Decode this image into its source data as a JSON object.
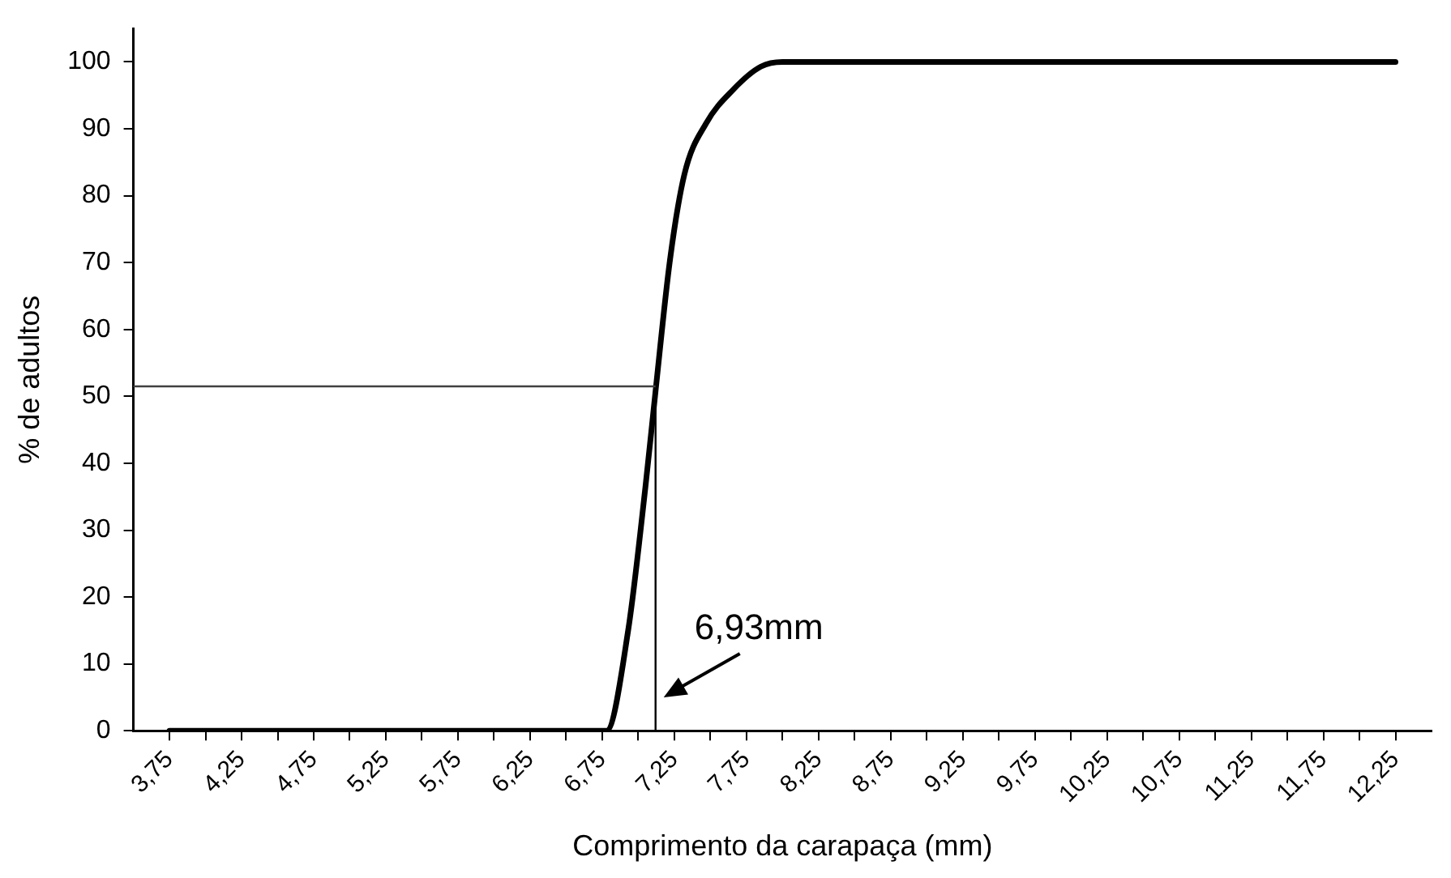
{
  "chart_data": {
    "type": "line",
    "xlabel": "Comprimento da carapaça (mm)",
    "ylabel": "% de adultos",
    "x": [
      3.75,
      4.5,
      5.5,
      6.25,
      6.78,
      6.93,
      7.05,
      7.12,
      7.22,
      7.32,
      7.47,
      7.66,
      7.85,
      8.0,
      9,
      10,
      11,
      12.25
    ],
    "series": [
      {
        "color": "#000000",
        "values": [
          0,
          0,
          0,
          0,
          0,
          15,
          36.5,
          50.8,
          70.4,
          83.2,
          90.8,
          95.9,
          99.3,
          100,
          100,
          100,
          100,
          100
        ]
      }
    ],
    "xlim": [
      3.5,
      12.5
    ],
    "xticks": [
      {
        "value": 3.75,
        "label": "3,75"
      },
      {
        "value": 4,
        "label": null
      },
      {
        "value": 4.25,
        "label": "4,25"
      },
      {
        "value": 4.5,
        "label": null
      },
      {
        "value": 4.75,
        "label": "4,75"
      },
      {
        "value": 5,
        "label": null
      },
      {
        "value": 5.25,
        "label": "5,25"
      },
      {
        "value": 5.5,
        "label": null
      },
      {
        "value": 5.75,
        "label": "5,75"
      },
      {
        "value": 6,
        "label": null
      },
      {
        "value": 6.25,
        "label": "6,25"
      },
      {
        "value": 6.5,
        "label": null
      },
      {
        "value": 6.75,
        "label": "6,75"
      },
      {
        "value": 7,
        "label": null
      },
      {
        "value": 7.25,
        "label": "7,25"
      },
      {
        "value": 7.5,
        "label": null
      },
      {
        "value": 7.75,
        "label": "7,75"
      },
      {
        "value": 8,
        "label": null
      },
      {
        "value": 8.25,
        "label": "8,25"
      },
      {
        "value": 8.5,
        "label": null
      },
      {
        "value": 8.75,
        "label": "8,75"
      },
      {
        "value": 9,
        "label": null
      },
      {
        "value": 9.25,
        "label": "9,25"
      },
      {
        "value": 9.5,
        "label": null
      },
      {
        "value": 9.75,
        "label": "9,75"
      },
      {
        "value": 10,
        "label": null
      },
      {
        "value": 10.25,
        "label": "10,25"
      },
      {
        "value": 10.5,
        "label": null
      },
      {
        "value": 10.75,
        "label": "10,75"
      },
      {
        "value": 11,
        "label": null
      },
      {
        "value": 11.25,
        "label": "11,25"
      },
      {
        "value": 11.5,
        "label": null
      },
      {
        "value": 11.75,
        "label": "11,75"
      },
      {
        "value": 12,
        "label": null
      },
      {
        "value": 12.25,
        "label": "12,25"
      }
    ],
    "ylim": [
      0,
      105
    ],
    "yticks": [
      0,
      10,
      20,
      30,
      40,
      50,
      60,
      70,
      80,
      90,
      100
    ],
    "ref_lines": [
      {
        "axis": "x",
        "value": 7.12,
        "color": "#000000"
      },
      {
        "axis": "y",
        "value": 51.5,
        "color": "#404040"
      }
    ],
    "annotations": [
      {
        "text": "6,93mm",
        "x": 7.12,
        "y": 5
      }
    ],
    "grid": false,
    "legend": false,
    "marker": "none",
    "line_style": "solid"
  }
}
